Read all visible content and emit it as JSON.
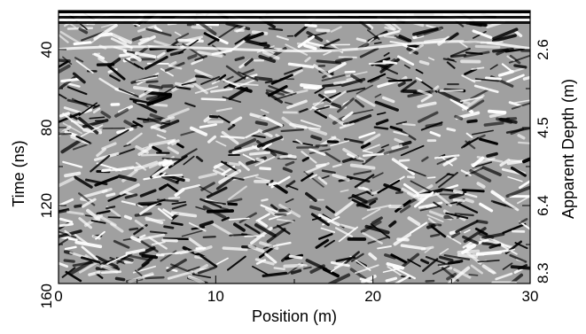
{
  "chart_data": {
    "type": "heatmap",
    "title": "",
    "xlabel": "Position (m)",
    "ylabel": "Time (ns)",
    "y2label": "Apparent Depth (m)",
    "xlim": [
      0,
      30
    ],
    "ylim": [
      20,
      160
    ],
    "y_inverted": true,
    "xticks": [
      0,
      10,
      20,
      30
    ],
    "xtick_labels": [
      "0",
      "10",
      "20",
      "30"
    ],
    "xticks_minor": [
      5,
      15,
      25
    ],
    "yticks": [
      40,
      80,
      120,
      160
    ],
    "ytick_labels": [
      "40",
      "80",
      "120",
      "160"
    ],
    "yticks_minor": [
      60,
      100,
      140
    ],
    "y2ticks": [
      40,
      80,
      120,
      160
    ],
    "y2tick_labels": [
      "2.6",
      "4.5",
      "6.4",
      "8.3"
    ],
    "y2ticks_minor": [
      60,
      100,
      140
    ],
    "colormap": "grayscale",
    "colors": {
      "low": "#000000",
      "high": "#ffffff",
      "frame": "#000000"
    },
    "features": {
      "direct_wave_band_time_ns": [
        20,
        26
      ],
      "reflector_time_ns": 38
    },
    "grid": false,
    "legend": "none"
  }
}
